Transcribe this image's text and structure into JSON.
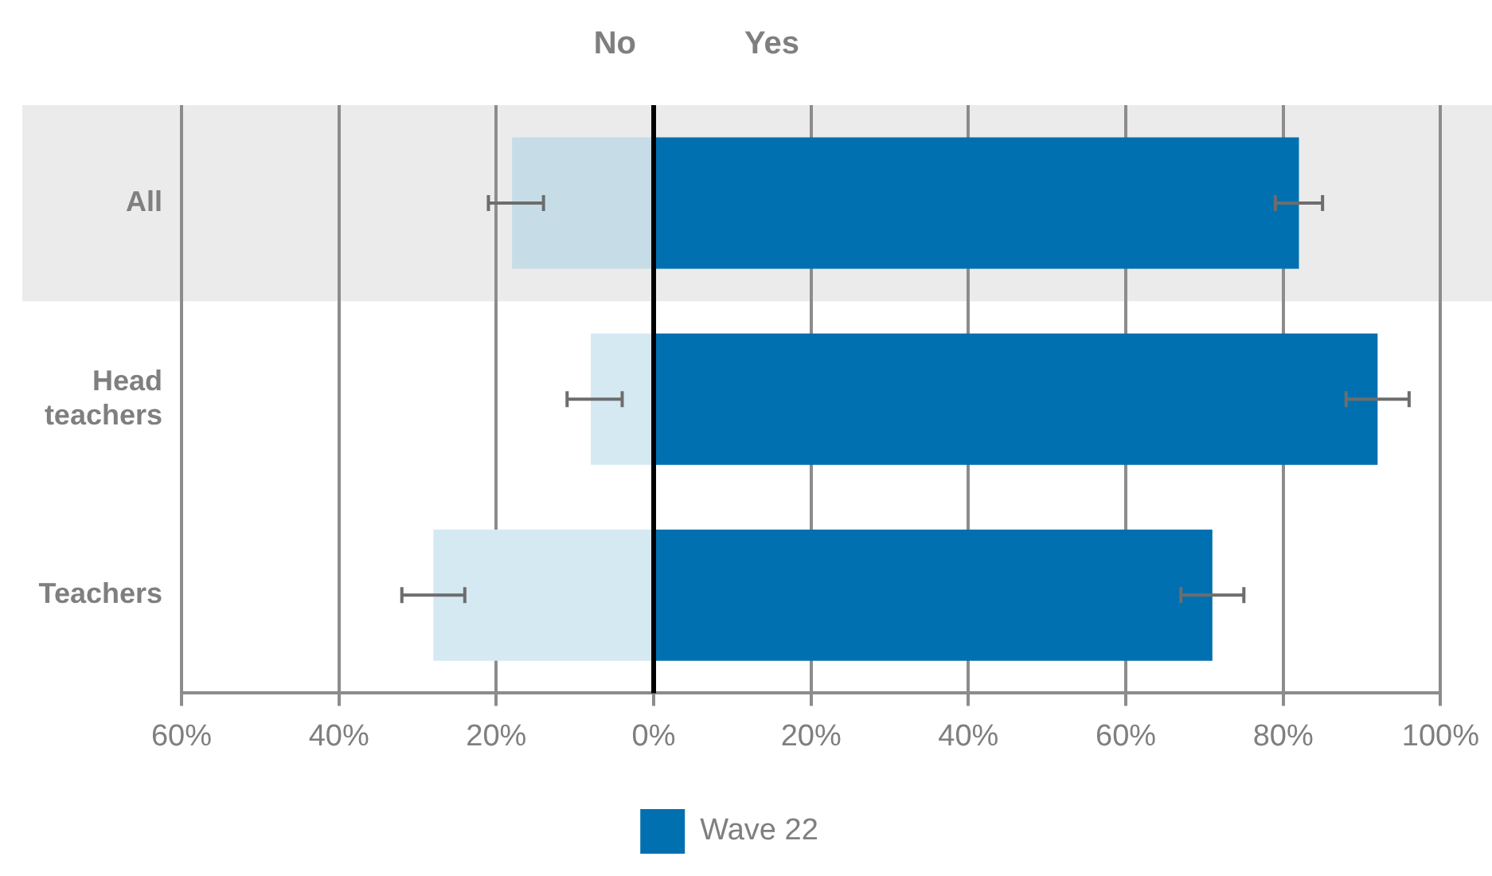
{
  "chart_data": {
    "type": "bar",
    "orientation": "horizontal",
    "stacked": true,
    "categories": [
      "All",
      "Head teachers",
      "Teachers"
    ],
    "series": [
      {
        "colors": [
          "#c6dde7",
          "#d5e9f3",
          "#d5e9f3"
        ],
        "values": [
          -18,
          -8,
          -28
        ],
        "errors": [
          [
            -21,
            -14
          ],
          [
            -11,
            -4
          ],
          [
            -32,
            -24
          ]
        ]
      },
      {
        "name": "Wave 22",
        "color": "#0070b0",
        "values": [
          82,
          92,
          71
        ],
        "errors": [
          [
            79,
            85
          ],
          [
            88,
            96
          ],
          [
            67,
            75
          ]
        ]
      }
    ],
    "xlim": [
      -60,
      100
    ],
    "xticks": [
      {
        "value": -60,
        "label": "60%"
      },
      {
        "value": -40,
        "label": "40%"
      },
      {
        "value": -20,
        "label": "20%"
      },
      {
        "value": 0,
        "label": "0%"
      },
      {
        "value": 20,
        "label": "20%"
      },
      {
        "value": 40,
        "label": "40%"
      },
      {
        "value": 60,
        "label": "60%"
      },
      {
        "value": 80,
        "label": "80%"
      },
      {
        "value": 100,
        "label": "100%"
      }
    ],
    "ref_lines": [
      {
        "axis": "x",
        "value": 0,
        "color": "#000000"
      }
    ],
    "bands": [
      {
        "axis": "y",
        "from": "All",
        "to": "All",
        "color": "#ebebeb"
      }
    ],
    "annotations": [
      "No",
      "Yes"
    ],
    "grid": "x",
    "legend": "bottom"
  }
}
